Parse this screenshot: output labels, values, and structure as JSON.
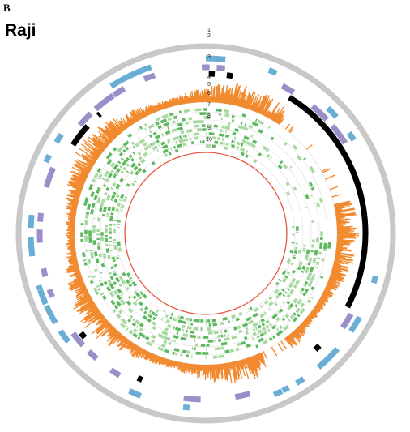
{
  "panel_label": "B",
  "title": "Raji",
  "track_labels": [
    "1",
    "2",
    "3",
    "4",
    "5",
    "6",
    "7",
    "8",
    "9",
    "10"
  ]
}
